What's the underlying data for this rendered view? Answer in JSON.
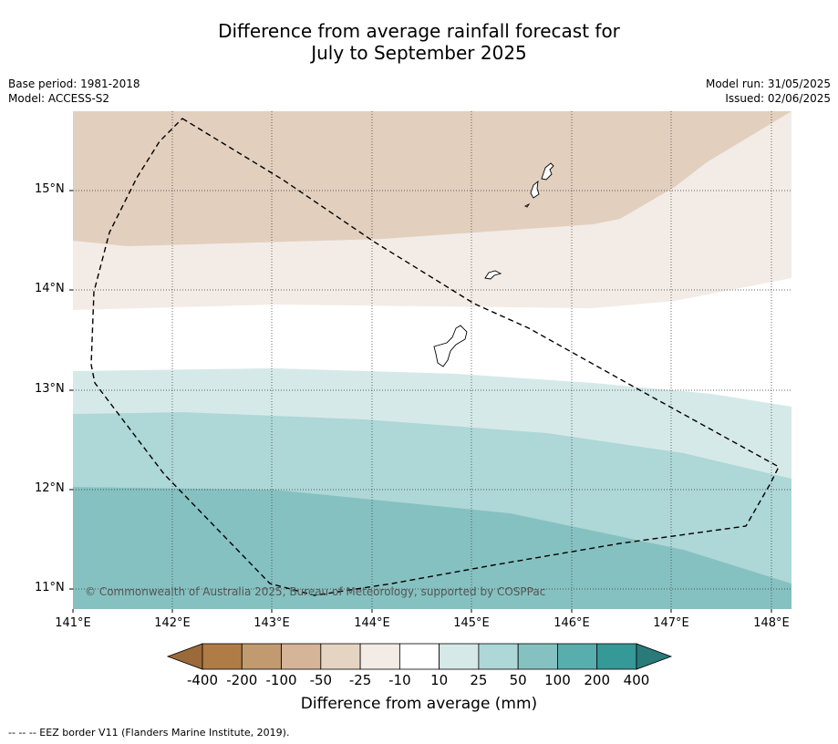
{
  "title_line1": "Difference from average rainfall forecast for",
  "title_line2": "July to September 2025",
  "base_period": "Base period: 1981-2018",
  "model": "Model: ACCESS-S2",
  "model_run": "Model run: 31/05/2025",
  "issued": "Issued: 02/06/2025",
  "copyright": "© Commonwealth of Australia 2025, Bureau of Meteorology, supported by COSPPac",
  "lat_labels": [
    "15°N",
    "14°N",
    "13°N",
    "12°N",
    "11°N"
  ],
  "lon_labels": [
    "141°E",
    "142°E",
    "143°E",
    "144°E",
    "145°E",
    "146°E",
    "147°E",
    "148°E"
  ],
  "colorbar": {
    "title": "Difference from average (mm)",
    "ticks": [
      "-400",
      "-200",
      "-100",
      "-50",
      "-25",
      "-10",
      "10",
      "25",
      "50",
      "100",
      "200",
      "400"
    ],
    "colors": [
      "#9b6a3a",
      "#b07c45",
      "#c29a70",
      "#d6b498",
      "#e6d4c2",
      "#f3ebe6",
      "#ffffff",
      "#d6e9e9",
      "#aed7d7",
      "#86c1c1",
      "#58adad",
      "#359998",
      "#2a7a7a"
    ]
  },
  "footer": "--  --  -- EEZ border V11 (Flanders Marine Institute, 2019)."
}
